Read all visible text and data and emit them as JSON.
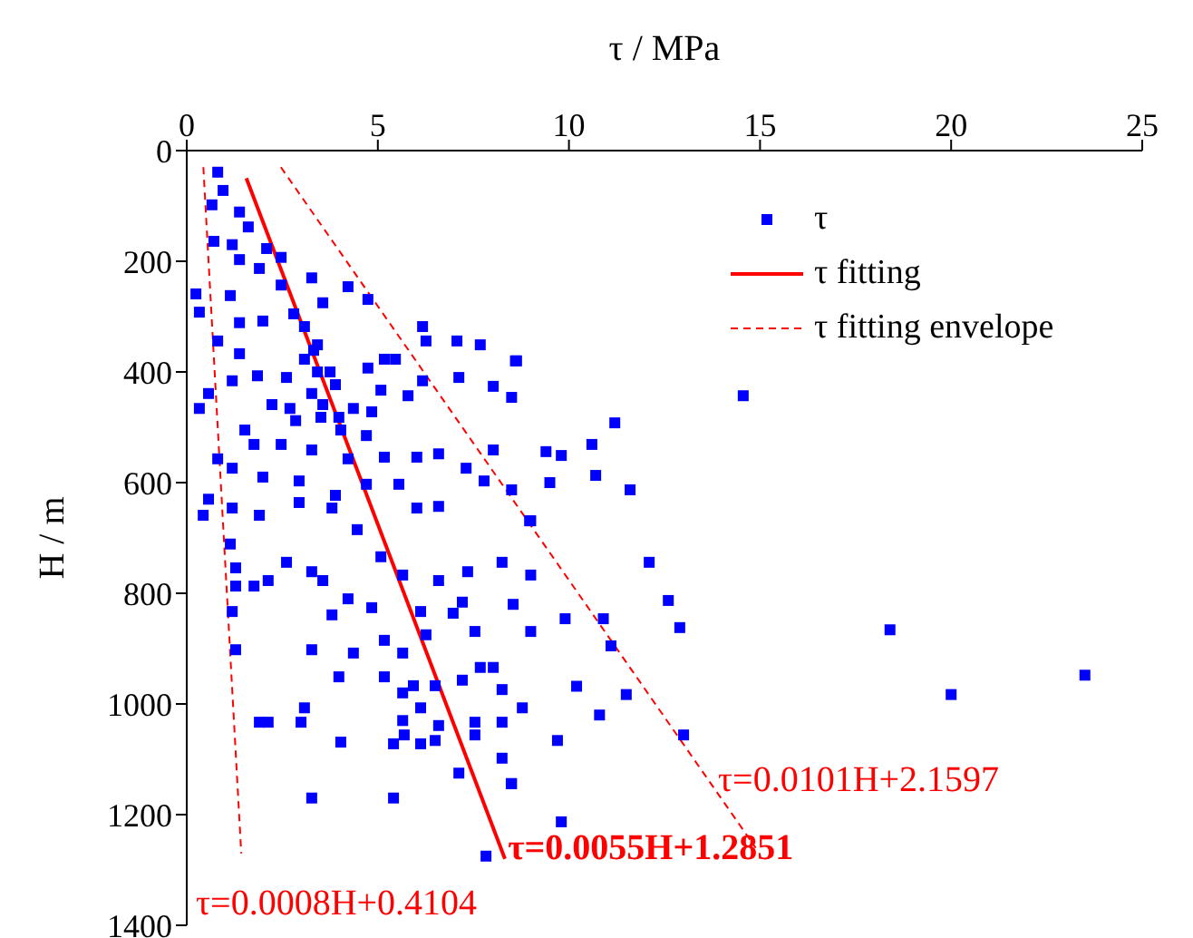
{
  "chart_data": {
    "type": "scatter",
    "xlabel": "τ / MPa",
    "ylabel": "H / m",
    "xlim": [
      0,
      25
    ],
    "xticks": [
      0,
      5,
      10,
      15,
      20,
      25
    ],
    "ylim": [
      1400,
      0
    ],
    "yticks": [
      0,
      200,
      400,
      600,
      800,
      1000,
      1200,
      1400
    ],
    "legend": "top right",
    "grid": false,
    "series": [
      {
        "name": "τ",
        "marker": "square",
        "color": "#0000ff",
        "x": [
          0.81,
          0.95,
          0.66,
          1.38,
          1.61,
          0.71,
          1.19,
          2.09,
          2.47,
          1.38,
          0.24,
          0.33,
          1.14,
          1.9,
          3.27,
          4.22,
          4.74,
          3.56,
          2.8,
          1.99,
          1.38,
          0.81,
          6.17,
          6.26,
          7.07,
          7.68,
          5.17,
          5.46,
          4.74,
          3.32,
          3.42,
          2.61,
          1.85,
          1.38,
          1.19,
          0.57,
          0.33,
          2.23,
          2.85,
          3.51,
          4.36,
          5.08,
          5.79,
          6.17,
          7.12,
          8.02,
          8.63,
          1.52,
          1.76,
          2.47,
          3.27,
          4.22,
          5.17,
          6.02,
          6.59,
          7.31,
          8.02,
          0.81,
          1.19,
          1.99,
          2.94,
          3.89,
          4.7,
          5.55,
          7.78,
          0.57,
          0.43,
          1.19,
          1.9,
          2.94,
          3.8,
          4.46,
          6.02,
          6.59,
          8.97,
          2.47,
          3.08,
          3.42,
          3.08,
          3.75,
          3.89,
          3.27,
          2.7,
          3.56,
          3.98,
          4.84,
          4.03,
          4.7,
          1.14,
          1.28,
          1.28,
          1.19,
          1.76,
          2.13,
          2.61,
          3.27,
          3.56,
          4.22,
          3.8,
          4.84,
          5.65,
          5.08,
          6.59,
          7.35,
          8.25,
          6.12,
          6.97,
          7.21,
          7.54,
          8.54,
          5.17,
          5.65,
          6.26,
          1.28,
          3.27,
          4.36,
          3.98,
          5.17,
          5.65,
          5.93,
          6.5,
          7.21,
          7.68,
          8.02,
          8.25,
          5.65,
          6.12,
          6.59,
          7.54,
          8.25,
          8.78,
          1.9,
          2.13,
          3.08,
          2.99,
          4.03,
          5.41,
          5.69,
          6.12,
          6.5,
          7.54,
          8.25,
          7.12,
          8.49,
          3.27,
          5.41,
          7.83,
          14.56,
          11.2,
          10.6,
          10.7,
          11.6,
          12.1,
          12.6,
          12.9,
          18.4,
          20.0,
          23.5,
          13.0,
          11.5,
          10.8,
          9.8,
          9.7,
          10.2,
          11.1,
          10.9,
          9.9,
          9.0,
          8.6,
          9.4,
          9.8,
          9.5,
          9.0,
          9.0,
          8.5,
          8.5,
          8.5
        ],
        "values": [
          39,
          72,
          98,
          111,
          138,
          164,
          170,
          177,
          193,
          197,
          259,
          292,
          262,
          213,
          230,
          246,
          269,
          275,
          295,
          308,
          311,
          344,
          318,
          344,
          344,
          351,
          377,
          377,
          393,
          361,
          400,
          410,
          407,
          367,
          416,
          439,
          466,
          459,
          488,
          482,
          466,
          433,
          443,
          416,
          410,
          426,
          380,
          505,
          531,
          531,
          541,
          557,
          554,
          554,
          548,
          574,
          541,
          557,
          574,
          590,
          597,
          623,
          603,
          603,
          597,
          630,
          659,
          646,
          659,
          636,
          646,
          685,
          646,
          643,
          669,
          243,
          318,
          351,
          377,
          400,
          423,
          439,
          466,
          459,
          482,
          472,
          505,
          515,
          711,
          754,
          787,
          833,
          787,
          777,
          744,
          761,
          777,
          810,
          839,
          826,
          767,
          734,
          777,
          761,
          744,
          833,
          836,
          816,
          869,
          820,
          885,
          908,
          875,
          902,
          902,
          908,
          951,
          951,
          980,
          967,
          967,
          957,
          934,
          934,
          974,
          1030,
          1007,
          1039,
          1033,
          1033,
          1007,
          1033,
          1033,
          1007,
          1033,
          1069,
          1072,
          1056,
          1072,
          1066,
          1056,
          1098,
          1125,
          1144,
          1170,
          1170,
          1275,
          443,
          492,
          531,
          587,
          613,
          744,
          813,
          862,
          866,
          983,
          948,
          1056,
          983,
          1020,
          1213,
          1066,
          968,
          895,
          846,
          846,
          767,
          380,
          544,
          551,
          600,
          669,
          869,
          1144,
          446,
          613
        ]
      },
      {
        "name": "τ fitting",
        "type": "line",
        "line_style": "solid",
        "color": "#ff0000",
        "x": [
          1.5601,
          8.3251
        ],
        "values": [
          50,
          1280
        ]
      },
      {
        "name": "τ fitting envelope",
        "type": "line",
        "line_style": "dashed",
        "color": "#ff0000",
        "x": [
          2.4627,
          14.886
        ],
        "values": [
          30,
          1260
        ]
      },
      {
        "type": "line",
        "line_style": "dashed",
        "color": "#ff0000",
        "x": [
          0.4344,
          1.4264
        ],
        "values": [
          30,
          1270
        ]
      }
    ],
    "annotations": [
      {
        "text": "τ=0.0055H+1.2851",
        "x": 8.4,
        "y": 1260
      },
      "τ=0.0101H+2.1597",
      "τ=0.0008H+0.4104"
    ]
  }
}
